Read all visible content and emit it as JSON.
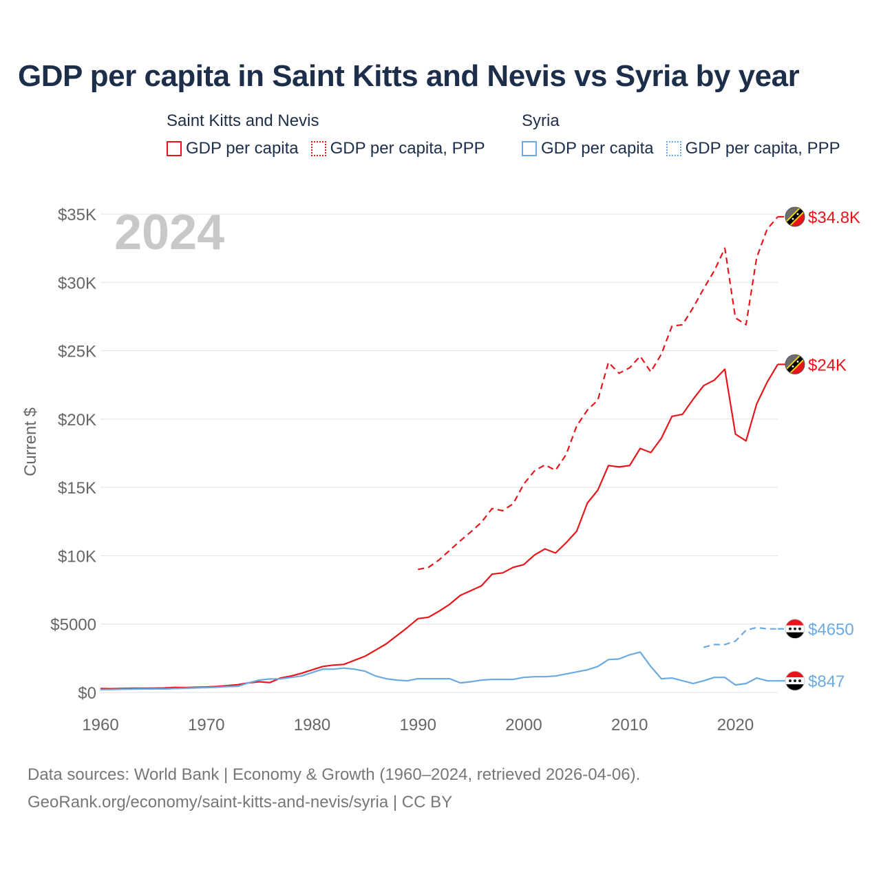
{
  "title": "GDP per capita in Saint Kitts and Nevis vs Syria by year",
  "legend": {
    "groups": [
      {
        "name": "Saint Kitts and Nevis",
        "items": [
          "GDP per capita",
          "GDP per capita, PPP"
        ]
      },
      {
        "name": "Syria",
        "items": [
          "GDP per capita",
          "GDP per capita, PPP"
        ]
      }
    ]
  },
  "year_label": "2024",
  "footer": {
    "line1": "Data sources: World Bank | Economy & Growth (1960–2024, retrieved 2026-04-06).",
    "line2": "GeoRank.org/economy/saint-kitts-and-nevis/syria | CC BY"
  },
  "colors": {
    "skn": "#e8141a",
    "syria": "#6aa9e2",
    "grid": "#e6e6e6",
    "axis_text": "#666666",
    "year": "#c8c8c8"
  },
  "chart_data": {
    "type": "line",
    "title": "GDP per capita in Saint Kitts and Nevis vs Syria by year",
    "ylabel": "Current $",
    "xlabel": "",
    "xlim": [
      1960,
      2024
    ],
    "ylim": [
      0,
      35000
    ],
    "x_ticks": [
      1960,
      1970,
      1980,
      1990,
      2000,
      2010,
      2020
    ],
    "x_tick_labels": [
      "1960",
      "1970",
      "1980",
      "1990",
      "2000",
      "2010",
      "2020"
    ],
    "y_ticks": [
      0,
      5000,
      10000,
      15000,
      20000,
      25000,
      30000,
      35000
    ],
    "y_tick_labels": [
      "$0",
      "$5000",
      "$10K",
      "$15K",
      "$20K",
      "$25K",
      "$30K",
      "$35K"
    ],
    "grid": true,
    "series": [
      {
        "name": "Saint Kitts and Nevis — GDP per capita",
        "country": "skn",
        "style": "solid",
        "end_label": "$24K",
        "points": [
          [
            1960,
            280
          ],
          [
            1961,
            270
          ],
          [
            1962,
            290
          ],
          [
            1963,
            300
          ],
          [
            1964,
            300
          ],
          [
            1965,
            310
          ],
          [
            1966,
            320
          ],
          [
            1967,
            370
          ],
          [
            1968,
            350
          ],
          [
            1969,
            380
          ],
          [
            1970,
            400
          ],
          [
            1971,
            440
          ],
          [
            1972,
            500
          ],
          [
            1973,
            570
          ],
          [
            1974,
            700
          ],
          [
            1975,
            780
          ],
          [
            1976,
            720
          ],
          [
            1977,
            1050
          ],
          [
            1978,
            1200
          ],
          [
            1979,
            1400
          ],
          [
            1980,
            1650
          ],
          [
            1981,
            1900
          ],
          [
            1982,
            2000
          ],
          [
            1983,
            2050
          ],
          [
            1984,
            2350
          ],
          [
            1985,
            2650
          ],
          [
            1986,
            3100
          ],
          [
            1987,
            3550
          ],
          [
            1988,
            4150
          ],
          [
            1989,
            4750
          ],
          [
            1990,
            5400
          ],
          [
            1991,
            5500
          ],
          [
            1992,
            5950
          ],
          [
            1993,
            6450
          ],
          [
            1994,
            7100
          ],
          [
            1995,
            7450
          ],
          [
            1996,
            7800
          ],
          [
            1997,
            8650
          ],
          [
            1998,
            8750
          ],
          [
            1999,
            9150
          ],
          [
            2000,
            9350
          ],
          [
            2001,
            10050
          ],
          [
            2002,
            10500
          ],
          [
            2003,
            10200
          ],
          [
            2004,
            10950
          ],
          [
            2005,
            11800
          ],
          [
            2006,
            13850
          ],
          [
            2007,
            14800
          ],
          [
            2008,
            16600
          ],
          [
            2009,
            16500
          ],
          [
            2010,
            16600
          ],
          [
            2011,
            17850
          ],
          [
            2012,
            17550
          ],
          [
            2013,
            18600
          ],
          [
            2014,
            20200
          ],
          [
            2015,
            20350
          ],
          [
            2016,
            21450
          ],
          [
            2017,
            22450
          ],
          [
            2018,
            22850
          ],
          [
            2019,
            23650
          ],
          [
            2020,
            18900
          ],
          [
            2021,
            18400
          ],
          [
            2022,
            21100
          ],
          [
            2023,
            22700
          ],
          [
            2024,
            24000
          ]
        ]
      },
      {
        "name": "Saint Kitts and Nevis — GDP per capita, PPP",
        "country": "skn",
        "style": "dashed",
        "end_label": "$34.8K",
        "points": [
          [
            1990,
            9000
          ],
          [
            1991,
            9150
          ],
          [
            1992,
            9700
          ],
          [
            1993,
            10400
          ],
          [
            1994,
            11100
          ],
          [
            1995,
            11750
          ],
          [
            1996,
            12450
          ],
          [
            1997,
            13450
          ],
          [
            1998,
            13300
          ],
          [
            1999,
            13800
          ],
          [
            2000,
            15250
          ],
          [
            2001,
            16200
          ],
          [
            2002,
            16650
          ],
          [
            2003,
            16250
          ],
          [
            2004,
            17400
          ],
          [
            2005,
            19500
          ],
          [
            2006,
            20650
          ],
          [
            2007,
            21400
          ],
          [
            2008,
            24150
          ],
          [
            2009,
            23350
          ],
          [
            2010,
            23750
          ],
          [
            2011,
            24600
          ],
          [
            2012,
            23450
          ],
          [
            2013,
            24750
          ],
          [
            2014,
            26800
          ],
          [
            2015,
            26900
          ],
          [
            2016,
            28150
          ],
          [
            2017,
            29550
          ],
          [
            2018,
            30850
          ],
          [
            2019,
            32500
          ],
          [
            2020,
            27400
          ],
          [
            2021,
            26900
          ],
          [
            2022,
            31800
          ],
          [
            2023,
            33900
          ],
          [
            2024,
            34800
          ]
        ]
      },
      {
        "name": "Syria — GDP per capita",
        "country": "syria",
        "style": "solid",
        "end_label": "$847",
        "points": [
          [
            1960,
            200
          ],
          [
            1961,
            210
          ],
          [
            1962,
            230
          ],
          [
            1963,
            240
          ],
          [
            1964,
            250
          ],
          [
            1965,
            260
          ],
          [
            1966,
            250
          ],
          [
            1967,
            280
          ],
          [
            1968,
            300
          ],
          [
            1969,
            330
          ],
          [
            1970,
            350
          ],
          [
            1971,
            380
          ],
          [
            1972,
            430
          ],
          [
            1973,
            450
          ],
          [
            1974,
            700
          ],
          [
            1975,
            900
          ],
          [
            1976,
            980
          ],
          [
            1977,
            990
          ],
          [
            1978,
            1100
          ],
          [
            1979,
            1200
          ],
          [
            1980,
            1450
          ],
          [
            1981,
            1700
          ],
          [
            1982,
            1700
          ],
          [
            1983,
            1780
          ],
          [
            1984,
            1700
          ],
          [
            1985,
            1550
          ],
          [
            1986,
            1200
          ],
          [
            1987,
            1000
          ],
          [
            1988,
            900
          ],
          [
            1989,
            850
          ],
          [
            1990,
            1000
          ],
          [
            1991,
            1000
          ],
          [
            1992,
            1000
          ],
          [
            1993,
            1000
          ],
          [
            1994,
            700
          ],
          [
            1995,
            780
          ],
          [
            1996,
            900
          ],
          [
            1997,
            950
          ],
          [
            1998,
            950
          ],
          [
            1999,
            950
          ],
          [
            2000,
            1100
          ],
          [
            2001,
            1150
          ],
          [
            2002,
            1150
          ],
          [
            2003,
            1200
          ],
          [
            2004,
            1350
          ],
          [
            2005,
            1500
          ],
          [
            2006,
            1650
          ],
          [
            2007,
            1900
          ],
          [
            2008,
            2400
          ],
          [
            2009,
            2450
          ],
          [
            2010,
            2750
          ],
          [
            2011,
            2950
          ],
          [
            2012,
            1900
          ],
          [
            2013,
            1000
          ],
          [
            2014,
            1050
          ],
          [
            2015,
            850
          ],
          [
            2016,
            650
          ],
          [
            2017,
            850
          ],
          [
            2018,
            1100
          ],
          [
            2019,
            1100
          ],
          [
            2020,
            550
          ],
          [
            2021,
            650
          ],
          [
            2022,
            1050
          ],
          [
            2023,
            850
          ],
          [
            2024,
            847
          ]
        ]
      },
      {
        "name": "Syria — GDP per capita, PPP",
        "country": "syria",
        "style": "dashed",
        "end_label": "$4650",
        "points": [
          [
            2017,
            3300
          ],
          [
            2018,
            3500
          ],
          [
            2019,
            3500
          ],
          [
            2020,
            3750
          ],
          [
            2021,
            4550
          ],
          [
            2022,
            4750
          ],
          [
            2023,
            4650
          ],
          [
            2024,
            4650
          ]
        ]
      }
    ]
  }
}
